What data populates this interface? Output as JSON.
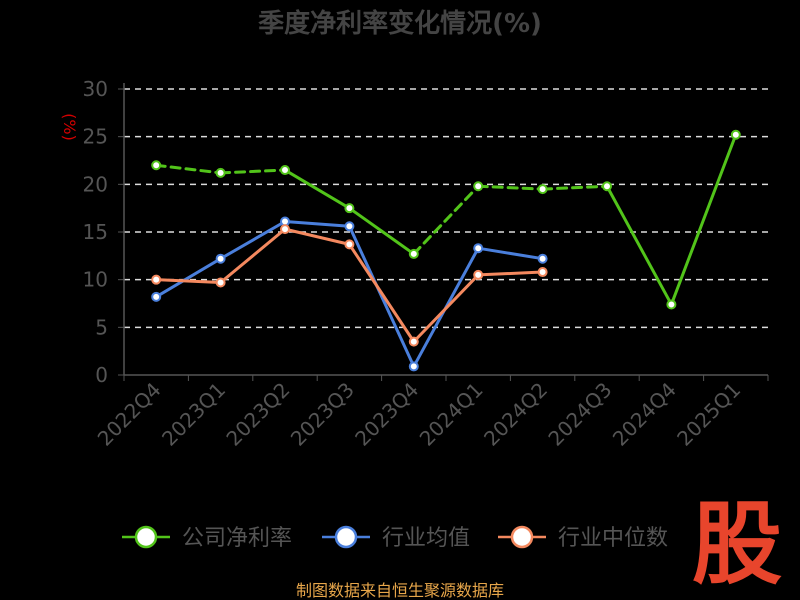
{
  "chart_data": {
    "type": "line",
    "title": "季度净利率变化情况(%)",
    "ylabel": "(%)",
    "ylim": [
      0,
      30
    ],
    "yticks": [
      0,
      5,
      10,
      15,
      20,
      25,
      30
    ],
    "grid": true,
    "legend_position": "bottom",
    "categories": [
      "2022Q4",
      "2023Q1",
      "2023Q2",
      "2023Q3",
      "2023Q4",
      "2024Q1",
      "2024Q2",
      "2024Q3",
      "2024Q4",
      "2025Q1"
    ],
    "series": [
      {
        "name": "公司净利率",
        "color": "#52c41a",
        "values": [
          22.0,
          21.2,
          21.5,
          17.5,
          12.7,
          19.8,
          19.5,
          19.8,
          7.4,
          25.2
        ]
      },
      {
        "name": "行业均值",
        "color": "#4a7fdc",
        "values": [
          8.2,
          12.2,
          16.1,
          15.6,
          0.9,
          13.3,
          12.2,
          null,
          null,
          null
        ]
      },
      {
        "name": "行业中位数",
        "color": "#f4895f",
        "values": [
          10.0,
          9.7,
          15.3,
          13.7,
          3.5,
          10.5,
          10.8,
          null,
          null,
          null
        ]
      }
    ]
  },
  "footer": {
    "source": "制图数据来自恒生聚源数据库"
  },
  "logo": {
    "text": "股"
  }
}
